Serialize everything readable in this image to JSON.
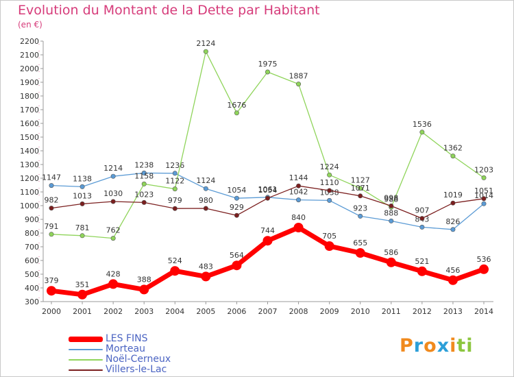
{
  "title": "Evolution du Montant de la Dette par Habitant",
  "subtitle": "(en €)",
  "logo": {
    "text": "Proxiti",
    "letters": [
      {
        "ch": "P",
        "color": "#f08a1e"
      },
      {
        "ch": "r",
        "color": "#2c9fd8"
      },
      {
        "ch": "o",
        "color": "#f08a1e"
      },
      {
        "ch": "x",
        "color": "#2c9fd8"
      },
      {
        "ch": "i",
        "color": "#f08a1e"
      },
      {
        "ch": "t",
        "color": "#8cc63f"
      },
      {
        "ch": "i",
        "color": "#8cc63f"
      }
    ]
  },
  "chart_data": {
    "type": "line",
    "title": "Evolution du Montant de la Dette par Habitant",
    "subtitle": "(en €)",
    "x": [
      "2000",
      "2001",
      "2002",
      "2003",
      "2004",
      "2005",
      "2006",
      "2007",
      "2008",
      "2009",
      "2010",
      "2011",
      "2012",
      "2013",
      "2014"
    ],
    "ylim": [
      300,
      2200
    ],
    "yticks": [
      300,
      400,
      500,
      600,
      700,
      800,
      900,
      1000,
      1100,
      1200,
      1300,
      1400,
      1500,
      1600,
      1700,
      1800,
      1900,
      2000,
      2100,
      2200
    ],
    "grid": false,
    "legend": "bottom-left",
    "series": [
      {
        "name": "LES FINS",
        "color": "#ff0000",
        "values": [
          379,
          351,
          428,
          388,
          524,
          483,
          564,
          744,
          840,
          705,
          655,
          586,
          521,
          456,
          536
        ]
      },
      {
        "name": "Morteau",
        "color": "#5b9bd5",
        "values": [
          1147,
          1138,
          1214,
          1238,
          1236,
          1124,
          1054,
          1061,
          1042,
          1038,
          923,
          888,
          843,
          826,
          1014
        ]
      },
      {
        "name": "Noël-Cerneux",
        "color": "#8fd45a",
        "values": [
          791,
          781,
          762,
          1158,
          1122,
          2124,
          1676,
          1975,
          1887,
          1224,
          1127,
          988,
          1536,
          1362,
          1203
        ]
      },
      {
        "name": "Villers-le-Lac",
        "color": "#7b1f1f",
        "values": [
          982,
          1013,
          1030,
          1023,
          979,
          980,
          929,
          1054,
          1144,
          1110,
          1071,
          998,
          907,
          1019,
          1051
        ]
      }
    ]
  }
}
